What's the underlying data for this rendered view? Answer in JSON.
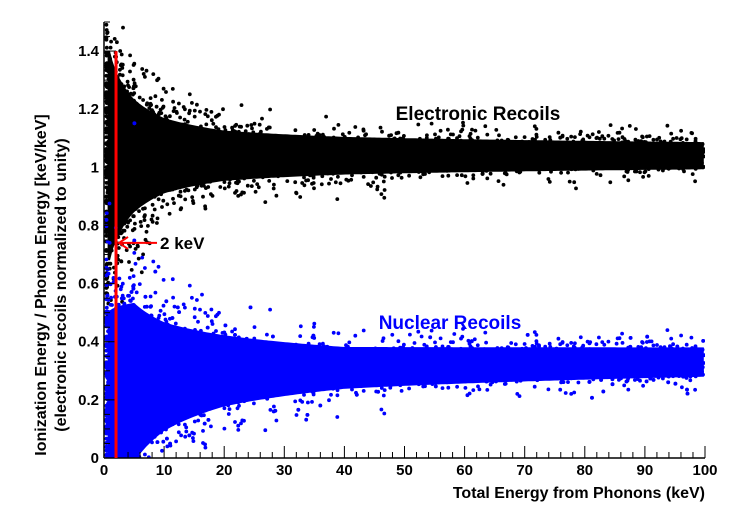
{
  "chart_data": {
    "type": "scatter",
    "xlabel": "Total Energy from Phonons (keV)",
    "ylabel": [
      "Ionization Energy / Phonon Energy [keV/keV]",
      "(electronic recoils normalized to unity)"
    ],
    "xlim": [
      0,
      100
    ],
    "ylim": [
      0,
      1.5
    ],
    "x_ticks": [
      0,
      10,
      20,
      30,
      40,
      50,
      60,
      70,
      80,
      90,
      100
    ],
    "y_ticks": [
      0,
      0.2,
      0.4,
      0.6,
      0.8,
      1,
      1.2,
      1.4
    ],
    "grid": false,
    "series": [
      {
        "name": "Electronic Recoils",
        "color": "#000000",
        "center_y": 1.04,
        "spread_profile": [
          {
            "x": 1,
            "half_width": 0.5
          },
          {
            "x": 3,
            "half_width": 0.35
          },
          {
            "x": 5,
            "half_width": 0.27
          },
          {
            "x": 10,
            "half_width": 0.18
          },
          {
            "x": 20,
            "half_width": 0.12
          },
          {
            "x": 40,
            "half_width": 0.09
          },
          {
            "x": 100,
            "half_width": 0.065
          }
        ]
      },
      {
        "name": "Nuclear Recoils",
        "color": "#0000ff",
        "center_profile": [
          {
            "x": 1,
            "y": 0.22
          },
          {
            "x": 5,
            "y": 0.26
          },
          {
            "x": 10,
            "y": 0.28
          },
          {
            "x": 20,
            "y": 0.3
          },
          {
            "x": 40,
            "y": 0.31
          },
          {
            "x": 100,
            "y": 0.33
          }
        ],
        "spread_profile": [
          {
            "x": 1,
            "half_width": 0.4
          },
          {
            "x": 5,
            "half_width": 0.38
          },
          {
            "x": 10,
            "half_width": 0.26
          },
          {
            "x": 20,
            "half_width": 0.17
          },
          {
            "x": 40,
            "half_width": 0.1
          },
          {
            "x": 100,
            "half_width": 0.07
          }
        ]
      }
    ],
    "annotations": [
      {
        "type": "vline",
        "x": 2,
        "y_range": [
          0,
          1.4
        ],
        "color": "#ff0000"
      },
      {
        "type": "arrow",
        "text": "2 keV",
        "x": 2,
        "y": 0.74,
        "color": "#ff0000"
      }
    ]
  }
}
